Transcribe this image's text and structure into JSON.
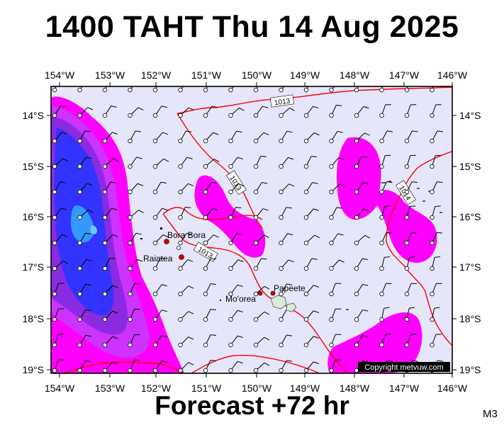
{
  "title": "1400 TAHT Thu 14 Aug 2025",
  "subtitle": "Forecast +72 hr",
  "model_code": "M3",
  "copyright": "Copyright metvuw.com",
  "axes": {
    "lon_labels": [
      "154°W",
      "153°W",
      "152°W",
      "151°W",
      "150°W",
      "149°W",
      "148°W",
      "147°W",
      "146°W"
    ],
    "lat_labels": [
      "14°S",
      "15°S",
      "16°S",
      "17°S",
      "18°S",
      "19°S"
    ]
  },
  "isobars": [
    {
      "label": "1013"
    },
    {
      "label": "1013"
    },
    {
      "label": "1013"
    },
    {
      "label": "1014"
    }
  ],
  "places": [
    {
      "name": "Bora Bora"
    },
    {
      "name": "Raiatea"
    },
    {
      "name": "Mo'orea"
    },
    {
      "name": "Papeete"
    }
  ],
  "colors": {
    "ocean": "#e6e6fa",
    "isobar": "#ff0000",
    "rain_light": "#ff00ff",
    "rain_moderate": "#cc33ff",
    "rain_heavy": "#8a2be2",
    "rain_very_heavy": "#3333ff",
    "rain_extreme": "#3399ff"
  }
}
